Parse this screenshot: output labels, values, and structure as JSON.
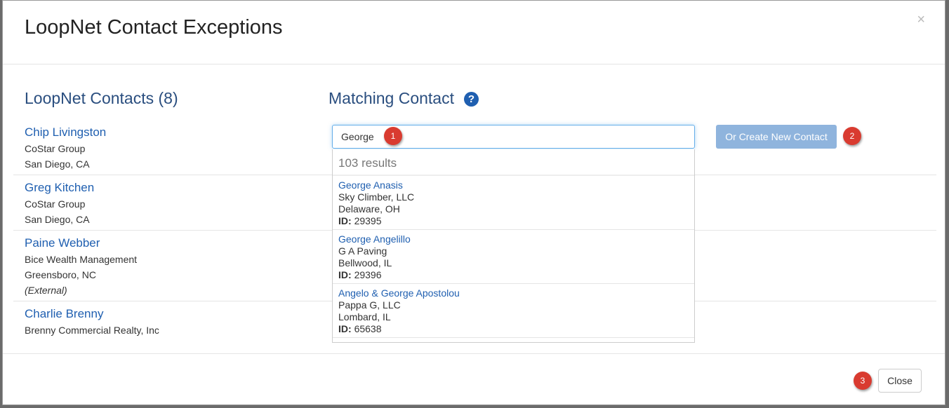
{
  "modal": {
    "title": "LoopNet Contact Exceptions",
    "close_icon": "×"
  },
  "left": {
    "heading": "LoopNet Contacts (8)"
  },
  "right": {
    "heading": "Matching Contact",
    "help_icon": "?"
  },
  "contacts": [
    {
      "name": "Chip Livingston",
      "company": "CoStar Group",
      "location": "San Diego, CA"
    },
    {
      "name": "Greg Kitchen",
      "company": "CoStar Group",
      "location": "San Diego, CA"
    },
    {
      "name": "Paine Webber",
      "company": "Bice Wealth Management",
      "location": "Greensboro, NC",
      "note": "(External)"
    },
    {
      "name": "Charlie Brenny",
      "company": "Brenny Commercial Realty, Inc"
    }
  ],
  "search": {
    "value": "George",
    "results_count": "103 results",
    "results": [
      {
        "name": "George Anasis",
        "company": "Sky Climber, LLC",
        "location": "Delaware, OH",
        "id_label": "ID:",
        "id": "29395"
      },
      {
        "name": "George Angelillo",
        "company": "G A Paving",
        "location": "Bellwood, IL",
        "id_label": "ID:",
        "id": "29396"
      },
      {
        "name": "Angelo & George Apostolou",
        "company": "Pappa G, LLC",
        "location": "Lombard, IL",
        "id_label": "ID:",
        "id": "65638"
      }
    ]
  },
  "buttons": {
    "create_new": "Or Create New Contact",
    "close": "Close"
  },
  "badges": [
    "1",
    "2",
    "3"
  ],
  "colors": {
    "link": "#1f5fb0",
    "heading": "#2a4e7f",
    "badge": "#d93b30",
    "primary_disabled": "#8fb4dd"
  }
}
